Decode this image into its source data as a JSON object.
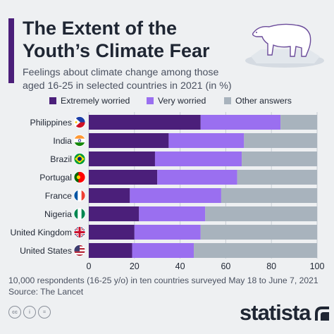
{
  "header": {
    "title_line1": "The Extent of the",
    "title_line2": "Youth’s Climate Fear",
    "subtitle_line1": "Feelings about climate change among those",
    "subtitle_line2": "aged 16-25 in selected countries in 2021 (in %)"
  },
  "footer": {
    "note": "10,000 respondents (16-25 y/o) in ten countries surveyed May 18 to June 7, 2021",
    "source": "Source: The Lancet",
    "brand": "statista",
    "cc_icons": [
      "cc-icon",
      "by-icon",
      "nd-icon"
    ]
  },
  "colors": {
    "extremely": "#4b1f7a",
    "very": "#9a6ff0",
    "other": "#a8b3bd",
    "text": "#1f2633",
    "background": "#eef0f2"
  },
  "chart_data": {
    "type": "bar",
    "orientation": "horizontal",
    "stacked": true,
    "categories": [
      "Philippines",
      "India",
      "Brazil",
      "Portugal",
      "France",
      "Nigeria",
      "United Kingdom",
      "United States"
    ],
    "flags": [
      "philippines-flag-icon",
      "india-flag-icon",
      "brazil-flag-icon",
      "portugal-flag-icon",
      "france-flag-icon",
      "nigeria-flag-icon",
      "united-kingdom-flag-icon",
      "united-states-flag-icon"
    ],
    "series": [
      {
        "name": "Extremely worried",
        "values": [
          49,
          35,
          29,
          30,
          18,
          22,
          20,
          19
        ]
      },
      {
        "name": "Very worried",
        "values": [
          35,
          33,
          38,
          35,
          40,
          29,
          29,
          27
        ]
      },
      {
        "name": "Other answers",
        "values": [
          16,
          32,
          33,
          35,
          42,
          49,
          51,
          54
        ]
      }
    ],
    "xlim": [
      0,
      100
    ],
    "xticks": [
      "0",
      "20",
      "40",
      "60",
      "80",
      "100"
    ],
    "grid": true,
    "legend_position": "top"
  }
}
